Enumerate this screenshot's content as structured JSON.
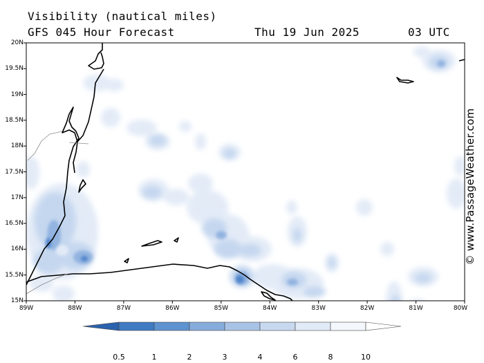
{
  "header": {
    "title": "Visibility (nautical miles)",
    "forecast": "GFS 045 Hour Forecast",
    "date": "Thu 19 Jun 2025",
    "time": "03 UTC"
  },
  "credit": "© www.PassageWeather.com",
  "map": {
    "lat_labels": [
      "20N",
      "19.5N",
      "19N",
      "18.5N",
      "18N",
      "17.5N",
      "17N",
      "16.5N",
      "16N",
      "15.5N",
      "15N"
    ],
    "lon_labels": [
      "89W",
      "88W",
      "87W",
      "86W",
      "85W",
      "84W",
      "83W",
      "82W",
      "81W",
      "80W"
    ],
    "lat_range": [
      15,
      20
    ],
    "lon_range": [
      -89,
      -80
    ]
  },
  "colorbar": {
    "labels": [
      "0.5",
      "1",
      "2",
      "3",
      "4",
      "6",
      "8",
      "10"
    ],
    "colors": [
      "#2b62ad",
      "#3f7ac3",
      "#5e92d0",
      "#87acdc",
      "#a9c3e6",
      "#c7d8ef",
      "#e1eaf7",
      "#f4f7fc"
    ]
  }
}
